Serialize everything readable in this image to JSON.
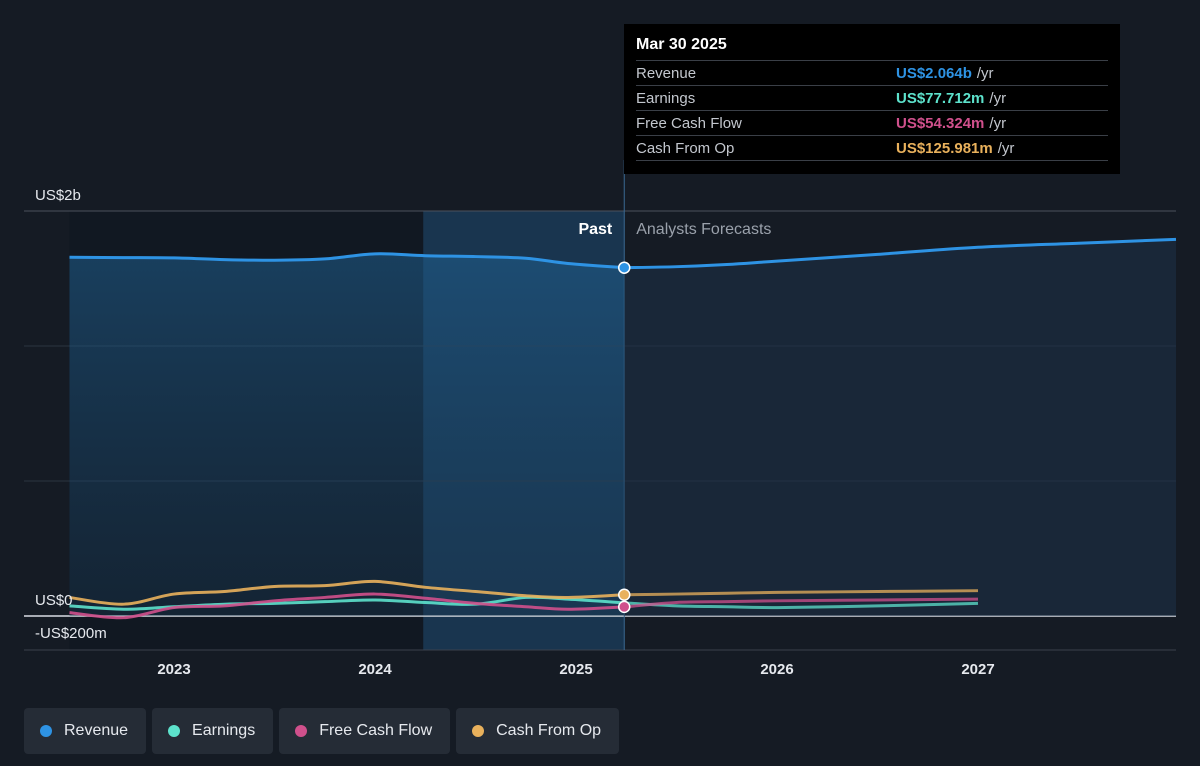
{
  "tooltip": {
    "date": "Mar 30 2025",
    "rows": [
      {
        "label": "Revenue",
        "value": "US$2.064b",
        "unit": "/yr",
        "color": "#2e93e4"
      },
      {
        "label": "Earnings",
        "value": "US$77.712m",
        "unit": "/yr",
        "color": "#5de2cc"
      },
      {
        "label": "Free Cash Flow",
        "value": "US$54.324m",
        "unit": "/yr",
        "color": "#d0508c"
      },
      {
        "label": "Cash From Op",
        "value": "US$125.981m",
        "unit": "/yr",
        "color": "#e9b15c"
      }
    ]
  },
  "region_labels": {
    "past": "Past",
    "forecast": "Analysts Forecasts"
  },
  "legend": [
    {
      "label": "Revenue",
      "color": "#2e93e4"
    },
    {
      "label": "Earnings",
      "color": "#5de2cc"
    },
    {
      "label": "Free Cash Flow",
      "color": "#d0508c"
    },
    {
      "label": "Cash From Op",
      "color": "#e9b15c"
    }
  ],
  "chart_data": {
    "type": "line",
    "y_unit": "US$ millions",
    "ylim": [
      -200,
      2400
    ],
    "xlim": [
      2022.25,
      2028.0
    ],
    "y_tick_labels": [
      {
        "value": 2000,
        "label": "US$2b"
      },
      {
        "value": 0,
        "label": "US$0"
      },
      {
        "value": -200,
        "label": "-US$200m"
      }
    ],
    "x_ticks": [
      2023,
      2024,
      2025,
      2026,
      2027
    ],
    "divider_x": 2025.24,
    "highlight_start_x": 2024.24,
    "tooltip_x": 2025.24,
    "series": [
      {
        "name": "Revenue",
        "color": "#2e93e4",
        "points": [
          [
            2022.48,
            2126
          ],
          [
            2022.75,
            2124
          ],
          [
            2023.0,
            2122
          ],
          [
            2023.25,
            2112
          ],
          [
            2023.5,
            2108
          ],
          [
            2023.75,
            2116
          ],
          [
            2024.0,
            2146
          ],
          [
            2024.25,
            2135
          ],
          [
            2024.5,
            2130
          ],
          [
            2024.75,
            2120
          ],
          [
            2024.96,
            2089
          ],
          [
            2025.24,
            2064
          ],
          [
            2025.5,
            2070
          ],
          [
            2025.75,
            2083
          ],
          [
            2026.0,
            2103
          ],
          [
            2026.5,
            2143
          ],
          [
            2027.0,
            2185
          ],
          [
            2027.5,
            2209
          ],
          [
            2028.0,
            2232
          ]
        ]
      },
      {
        "name": "Earnings",
        "color": "#5de2cc",
        "points": [
          [
            2022.48,
            60
          ],
          [
            2022.75,
            40
          ],
          [
            2023.0,
            55
          ],
          [
            2023.25,
            70
          ],
          [
            2023.5,
            75
          ],
          [
            2023.75,
            85
          ],
          [
            2024.0,
            95
          ],
          [
            2024.25,
            80
          ],
          [
            2024.5,
            70
          ],
          [
            2024.75,
            110
          ],
          [
            2024.96,
            100
          ],
          [
            2025.24,
            78
          ],
          [
            2025.5,
            60
          ],
          [
            2025.75,
            55
          ],
          [
            2026.0,
            50
          ],
          [
            2026.5,
            60
          ],
          [
            2027.0,
            75
          ]
        ]
      },
      {
        "name": "Free Cash Flow",
        "color": "#d0508c",
        "points": [
          [
            2022.48,
            20
          ],
          [
            2022.75,
            -10
          ],
          [
            2023.0,
            50
          ],
          [
            2023.25,
            60
          ],
          [
            2023.5,
            90
          ],
          [
            2023.75,
            110
          ],
          [
            2024.0,
            130
          ],
          [
            2024.25,
            105
          ],
          [
            2024.5,
            75
          ],
          [
            2024.75,
            55
          ],
          [
            2024.96,
            40
          ],
          [
            2025.24,
            54
          ],
          [
            2025.5,
            80
          ],
          [
            2025.75,
            85
          ],
          [
            2026.0,
            90
          ],
          [
            2026.5,
            95
          ],
          [
            2027.0,
            100
          ]
        ]
      },
      {
        "name": "Cash From Op",
        "color": "#e9b15c",
        "points": [
          [
            2022.48,
            110
          ],
          [
            2022.75,
            70
          ],
          [
            2023.0,
            130
          ],
          [
            2023.25,
            145
          ],
          [
            2023.5,
            175
          ],
          [
            2023.75,
            180
          ],
          [
            2024.0,
            205
          ],
          [
            2024.25,
            170
          ],
          [
            2024.5,
            145
          ],
          [
            2024.75,
            120
          ],
          [
            2024.96,
            110
          ],
          [
            2025.24,
            126
          ],
          [
            2025.5,
            130
          ],
          [
            2025.75,
            135
          ],
          [
            2026.0,
            140
          ],
          [
            2026.5,
            145
          ],
          [
            2027.0,
            150
          ]
        ]
      }
    ]
  }
}
